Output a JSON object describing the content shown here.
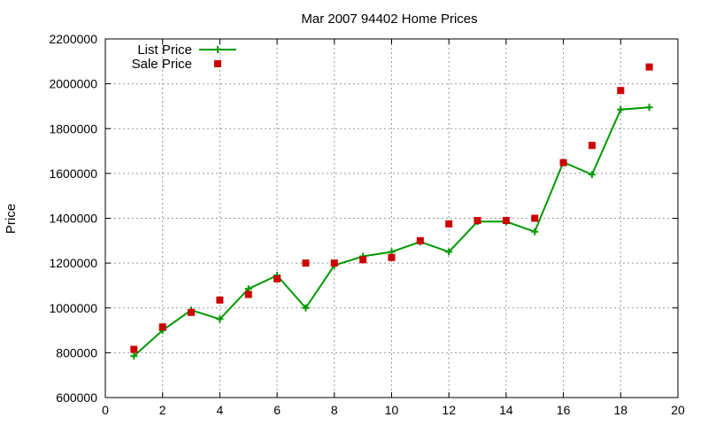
{
  "chart_data": {
    "type": "line",
    "title": "Mar 2007 94402 Home Prices",
    "xlabel": "",
    "ylabel": "Price",
    "xlim": [
      0,
      20
    ],
    "ylim": [
      600000,
      2200000
    ],
    "xticks": [
      0,
      2,
      4,
      6,
      8,
      10,
      12,
      14,
      16,
      18,
      20
    ],
    "yticks": [
      600000,
      800000,
      1000000,
      1200000,
      1400000,
      1600000,
      1800000,
      2000000,
      2200000
    ],
    "xtick_labels": [
      "0",
      "2",
      "4",
      "6",
      "8",
      "10",
      "12",
      "14",
      "16",
      "18",
      "20"
    ],
    "ytick_labels": [
      "600000",
      "800000",
      "1000000",
      "1200000",
      "1400000",
      "1600000",
      "1800000",
      "2000000",
      "2200000"
    ],
    "grid": true,
    "legend_position": "top-left",
    "x": [
      1,
      2,
      3,
      4,
      5,
      6,
      7,
      8,
      9,
      10,
      11,
      12,
      13,
      14,
      15,
      16,
      17,
      18,
      19
    ],
    "series": [
      {
        "name": "List Price",
        "style": "line-with-plus-markers",
        "color": "#009900",
        "values": [
          785000,
          900000,
          990000,
          950000,
          1085000,
          1145000,
          1000000,
          1190000,
          1230000,
          1250000,
          1295000,
          1250000,
          1385000,
          1385000,
          1340000,
          1650000,
          1595000,
          1885000,
          1895000
        ]
      },
      {
        "name": "Sale Price",
        "style": "square-markers",
        "color": "#cc0000",
        "values": [
          815000,
          915000,
          980000,
          1035000,
          1060000,
          1130000,
          1200000,
          1200000,
          1215000,
          1225000,
          1300000,
          1375000,
          1390000,
          1390000,
          1400000,
          1648000,
          1725000,
          1970000,
          2075000
        ]
      }
    ]
  }
}
